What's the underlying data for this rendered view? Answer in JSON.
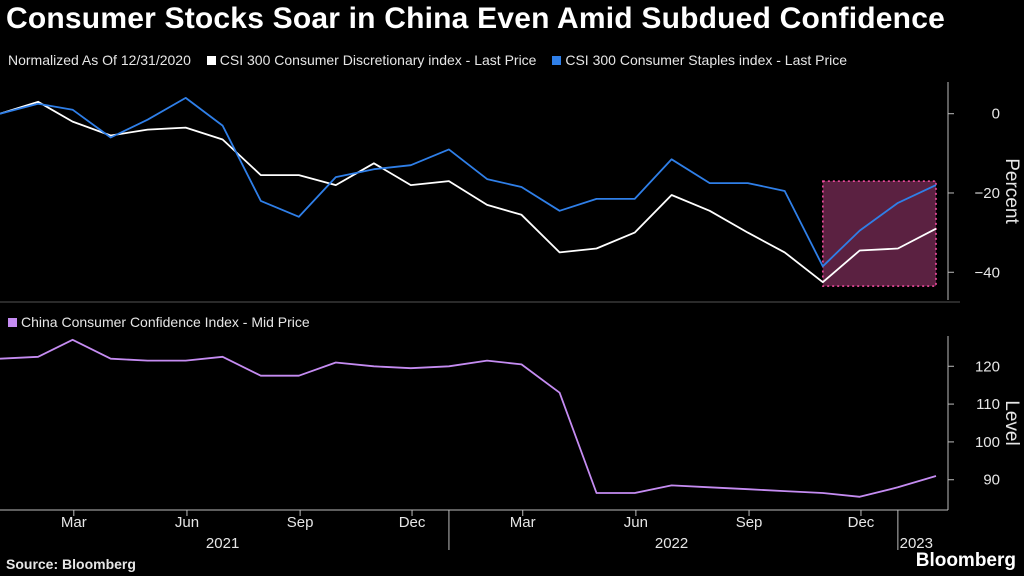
{
  "title": "Consumer Stocks Soar in China Even Amid Subdued Confidence",
  "source": "Source: Bloomberg",
  "brand": "Bloomberg",
  "colors": {
    "discretionary": "#ffffff",
    "staples": "#2f7fe8",
    "confidence": "#c58cf2",
    "highlight": "#d94f9a"
  },
  "chart_data": [
    {
      "type": "line",
      "subtitle": "Normalized As Of 12/31/2020",
      "ylabel": "Percent",
      "ylim": [
        -47,
        8
      ],
      "yticks": [
        0,
        -20,
        -40
      ],
      "x": [
        "2020-12-31",
        "2021-01-31",
        "2021-02-28",
        "2021-03-31",
        "2021-04-30",
        "2021-05-31",
        "2021-06-30",
        "2021-07-31",
        "2021-08-31",
        "2021-09-30",
        "2021-10-31",
        "2021-11-30",
        "2021-12-31",
        "2022-01-31",
        "2022-02-28",
        "2022-03-31",
        "2022-04-30",
        "2022-05-31",
        "2022-06-30",
        "2022-07-31",
        "2022-08-31",
        "2022-09-30",
        "2022-10-31",
        "2022-11-30",
        "2022-12-31",
        "2023-01-31"
      ],
      "series": [
        {
          "name": "CSI 300 Consumer Discretionary index - Last Price",
          "color": "#ffffff",
          "values": [
            0,
            3,
            -2,
            -5.5,
            -4,
            -3.5,
            -6.5,
            -15.5,
            -15.5,
            -18,
            -12.5,
            -18,
            -17,
            -23,
            -25.5,
            -35,
            -34,
            -30,
            -20.5,
            -24.5,
            -30,
            -35,
            -42.5,
            -34.5,
            -34,
            -29
          ]
        },
        {
          "name": "CSI 300 Consumer Staples index - Last Price",
          "color": "#2f7fe8",
          "values": [
            0,
            2.5,
            1,
            -6,
            -1.5,
            4,
            -3,
            -22,
            -26,
            -16,
            -14,
            -13,
            -9,
            -16.5,
            -18.5,
            -24.5,
            -21.5,
            -21.5,
            -11.5,
            -17.5,
            -17.5,
            -19.5,
            -38.5,
            -29.5,
            -22.5,
            -18
          ]
        }
      ],
      "highlight": {
        "x_start": "2022-10-31",
        "x_end": "2023-01-31",
        "y_range": [
          -43.5,
          -17
        ]
      }
    },
    {
      "type": "line",
      "ylabel": "Level",
      "ylim": [
        82,
        128
      ],
      "yticks": [
        120,
        110,
        100,
        90
      ],
      "x": [
        "2020-12-31",
        "2021-01-31",
        "2021-02-28",
        "2021-03-31",
        "2021-04-30",
        "2021-05-31",
        "2021-06-30",
        "2021-07-31",
        "2021-08-31",
        "2021-09-30",
        "2021-10-31",
        "2021-11-30",
        "2021-12-31",
        "2022-01-31",
        "2022-02-28",
        "2022-03-31",
        "2022-04-30",
        "2022-05-31",
        "2022-06-30",
        "2022-07-31",
        "2022-08-31",
        "2022-09-30",
        "2022-10-31",
        "2022-11-30",
        "2022-12-31",
        "2023-01-31"
      ],
      "series": [
        {
          "name": "China Consumer Confidence Index - Mid Price",
          "color": "#c58cf2",
          "values": [
            122,
            122.5,
            127,
            122,
            121.5,
            121.5,
            122.5,
            117.5,
            117.5,
            121,
            120,
            119.5,
            120,
            121.5,
            120.5,
            113,
            86.5,
            86.5,
            88.5,
            88,
            87.5,
            87,
            86.5,
            85.5,
            88,
            91
          ]
        }
      ]
    }
  ],
  "x_axis": {
    "month_ticks": [
      {
        "label": "Mar",
        "date": "2021-03-01"
      },
      {
        "label": "Jun",
        "date": "2021-06-01"
      },
      {
        "label": "Sep",
        "date": "2021-09-01"
      },
      {
        "label": "Dec",
        "date": "2021-12-01"
      },
      {
        "label": "Mar",
        "date": "2022-03-01"
      },
      {
        "label": "Jun",
        "date": "2022-06-01"
      },
      {
        "label": "Sep",
        "date": "2022-09-01"
      },
      {
        "label": "Dec",
        "date": "2022-12-01"
      }
    ],
    "year_ticks": [
      {
        "label": "2021",
        "date": "2021-06-30"
      },
      {
        "label": "2022",
        "date": "2022-06-30"
      },
      {
        "label": "2023",
        "date": "2023-01-15"
      }
    ],
    "year_separators": [
      "2021-12-31",
      "2022-12-31"
    ]
  }
}
